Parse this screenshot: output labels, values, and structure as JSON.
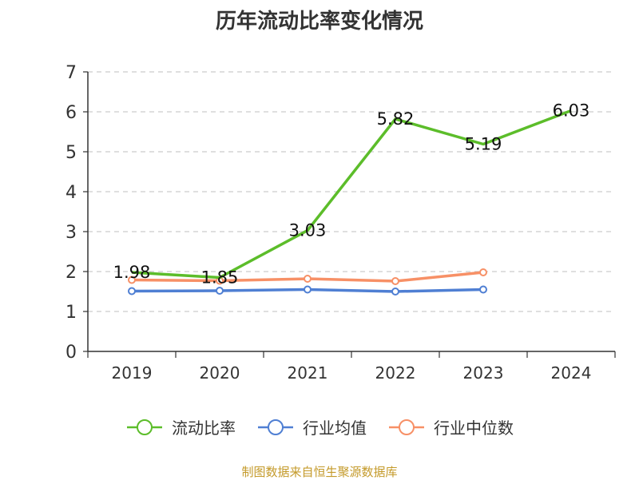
{
  "chart_data": {
    "type": "line",
    "title": "历年流动比率变化情况",
    "categories": [
      "2019",
      "2020",
      "2021",
      "2022",
      "2023",
      "2024"
    ],
    "ylim": [
      0,
      7
    ],
    "yticks": [
      "0",
      "1",
      "2",
      "3",
      "4",
      "5",
      "6",
      "7"
    ],
    "grid": true,
    "legend_position": "bottom",
    "series": [
      {
        "name": "流动比率",
        "color": "#5cbd2a",
        "values": [
          1.98,
          1.85,
          3.03,
          5.82,
          5.19,
          6.03
        ],
        "data_labels": [
          "1.98",
          "1.85",
          "3.03",
          "5.82",
          "5.19",
          "6.03"
        ]
      },
      {
        "name": "行业均值",
        "color": "#4f7fd3",
        "values": [
          1.51,
          1.52,
          1.55,
          1.5,
          1.55,
          null
        ]
      },
      {
        "name": "行业中位数",
        "color": "#f79066",
        "values": [
          1.79,
          1.77,
          1.82,
          1.76,
          1.98,
          null
        ]
      }
    ]
  },
  "source_note": "制图数据来自恒生聚源数据库"
}
